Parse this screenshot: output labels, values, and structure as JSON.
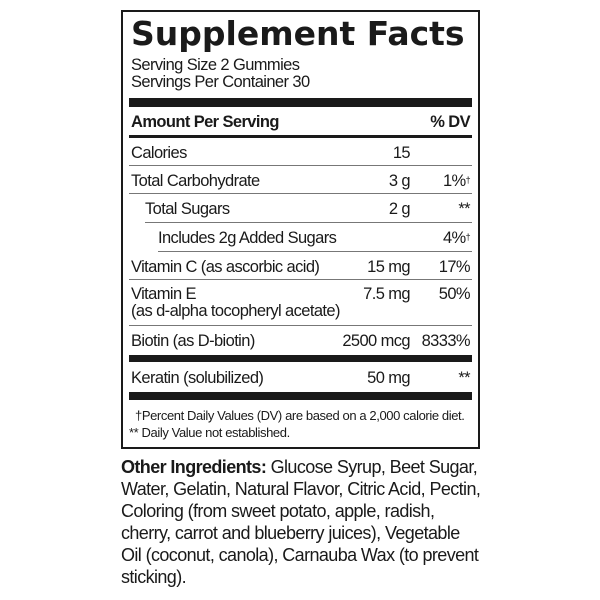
{
  "title": "Supplement Facts",
  "serving_size": "Serving Size 2 Gummies",
  "servings_per_container": "Servings Per Container 30",
  "header": {
    "amount": "Amount Per Serving",
    "dv": "% DV"
  },
  "rows": [
    {
      "name": "Calories",
      "amount": "15",
      "dv": ""
    },
    {
      "name": "Total Carbohydrate",
      "amount": "3 g",
      "dv": "1%",
      "mark": "†"
    },
    {
      "name": "Total Sugars",
      "amount": "2 g",
      "dv": "**"
    },
    {
      "name": "Includes 2g Added Sugars",
      "amount": "",
      "dv": "4%",
      "mark": "†"
    },
    {
      "name": "Vitamin C (as ascorbic acid)",
      "amount": "15 mg",
      "dv": "17%"
    },
    {
      "name": "Vitamin E",
      "sub": "(as d-alpha tocopheryl acetate)",
      "amount": "7.5 mg",
      "dv": "50%"
    },
    {
      "name": "Biotin (as D-biotin)",
      "amount": "2500 mcg",
      "dv": "8333%"
    },
    {
      "name": "Keratin (solubilized)",
      "amount": "50 mg",
      "dv": "**"
    }
  ],
  "footnotes": [
    "†Percent Daily Values (DV) are based on a 2,000 calorie diet.",
    "** Daily Value not established."
  ],
  "other_ingredients": {
    "label": "Other Ingredients:",
    "text": " Glucose Syrup, Beet Sugar, Water, Gelatin, Natural Flavor, Citric Acid, Pectin, Coloring (from sweet potato, apple, radish, cherry, carrot and blueberry juices), Vegetable Oil (coconut, canola), Carnauba Wax (to prevent sticking)."
  }
}
